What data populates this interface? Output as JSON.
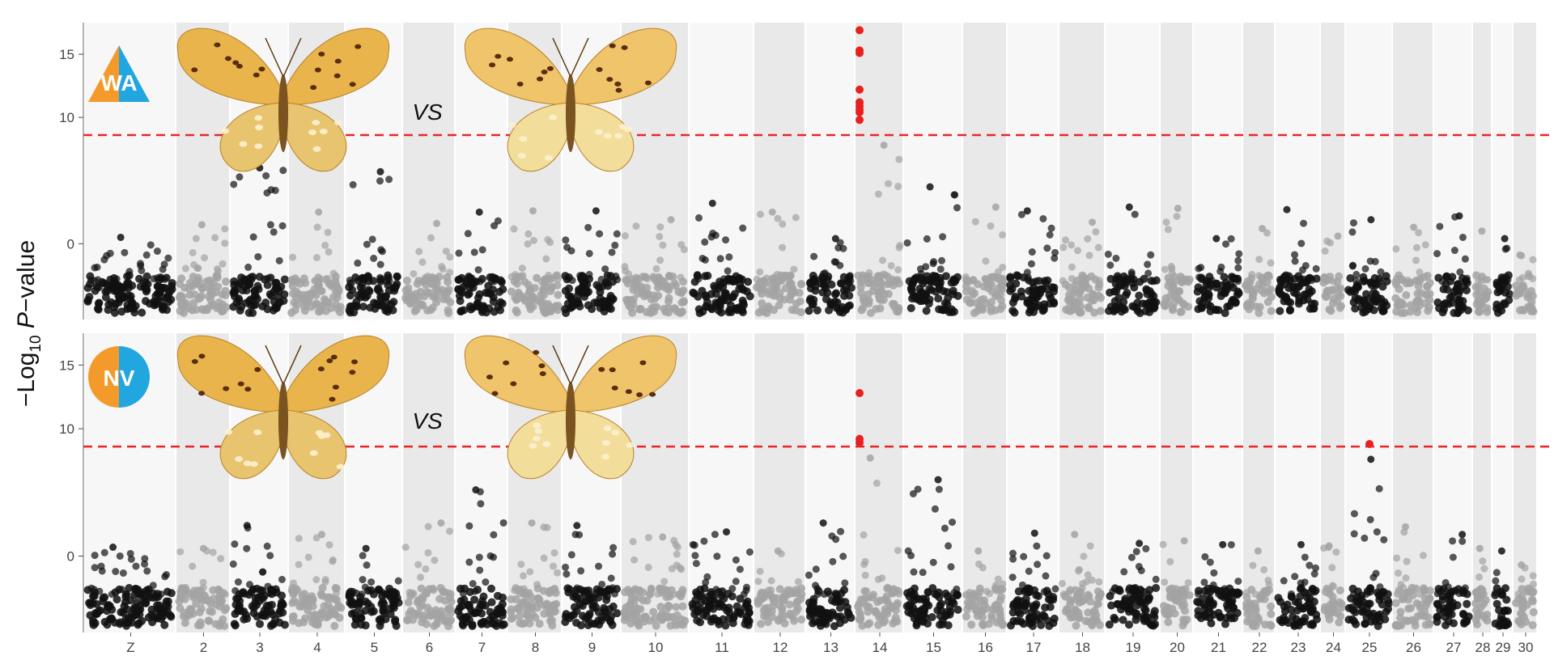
{
  "figure": {
    "ylabel_prefix": "−Log",
    "ylabel_sub": "10",
    "ylabel_italic": "P",
    "ylabel_suffix": "−value",
    "threshold_color": "#e8262b",
    "colors": {
      "band_light": "#f7f7f7",
      "band_dark": "#e9e9e9",
      "point_black": "#111111",
      "point_gray": "#a3a3a3",
      "significant": "#e8201e",
      "orange": "#f39a2b",
      "blue": "#22a6e0"
    },
    "chromosome_labels": [
      "Z",
      "2",
      "3",
      "4",
      "5",
      "6",
      "7",
      "8",
      "9",
      "10",
      "11",
      "12",
      "13",
      "14",
      "15",
      "16",
      "17",
      "18",
      "19",
      "20",
      "21",
      "22",
      "23",
      "24",
      "25",
      "26",
      "27",
      "28",
      "29",
      "30"
    ]
  },
  "chart_data": [
    {
      "type": "scatter",
      "panel": "top",
      "population_badge": "WA",
      "badge_shape": "triangle",
      "comparison_text": "VS",
      "yticks": [
        0,
        10,
        15
      ],
      "ytick_labels": [
        "0",
        "10",
        "15"
      ],
      "ylim": [
        -6,
        17.5
      ],
      "threshold": 8.6,
      "x_categories": [
        "Z",
        "2",
        "3",
        "4",
        "5",
        "6",
        "7",
        "8",
        "9",
        "10",
        "11",
        "12",
        "13",
        "14",
        "15",
        "16",
        "17",
        "18",
        "19",
        "20",
        "21",
        "22",
        "23",
        "24",
        "25",
        "26",
        "27",
        "28",
        "29",
        "30"
      ],
      "significant_points": [
        {
          "chromosome": "14",
          "values": [
            16.9,
            15.3,
            15.1,
            12.2,
            11.2,
            10.9,
            10.6,
            10.4,
            9.8
          ]
        }
      ],
      "peak_by_chromosome": [
        0.5,
        1.5,
        6.0,
        2.5,
        5.7,
        1.6,
        2.5,
        2.6,
        2.6,
        1.9,
        3.2,
        2.5,
        0.4,
        7.8,
        4.5,
        2.9,
        2.6,
        1.7,
        2.9,
        2.8,
        0.4,
        1.2,
        2.7,
        0.6,
        1.9,
        1.3,
        2.2,
        1.0,
        0.4,
        -0.9
      ]
    },
    {
      "type": "scatter",
      "panel": "bottom",
      "population_badge": "NV",
      "badge_shape": "circle",
      "comparison_text": "VS",
      "yticks": [
        0,
        10,
        15
      ],
      "ytick_labels": [
        "0",
        "10",
        "15"
      ],
      "ylim": [
        -6,
        17.5
      ],
      "threshold": 8.6,
      "x_categories": [
        "Z",
        "2",
        "3",
        "4",
        "5",
        "6",
        "7",
        "8",
        "9",
        "10",
        "11",
        "12",
        "13",
        "14",
        "15",
        "16",
        "17",
        "18",
        "19",
        "20",
        "21",
        "22",
        "23",
        "24",
        "25",
        "26",
        "27",
        "28",
        "29",
        "30"
      ],
      "significant_points": [
        {
          "chromosome": "14",
          "values": [
            12.8,
            9.2,
            8.9
          ]
        },
        {
          "chromosome": "25",
          "values": [
            8.8
          ]
        }
      ],
      "peak_by_chromosome": [
        0.7,
        0.6,
        2.4,
        1.7,
        0.6,
        2.6,
        5.2,
        2.6,
        2.4,
        1.5,
        1.9,
        0.4,
        2.6,
        7.7,
        6.0,
        0.4,
        1.8,
        1.7,
        1.0,
        1.2,
        0.9,
        0.4,
        0.9,
        0.8,
        7.6,
        2.3,
        1.7,
        0.6,
        0.4,
        -0.7
      ]
    }
  ]
}
